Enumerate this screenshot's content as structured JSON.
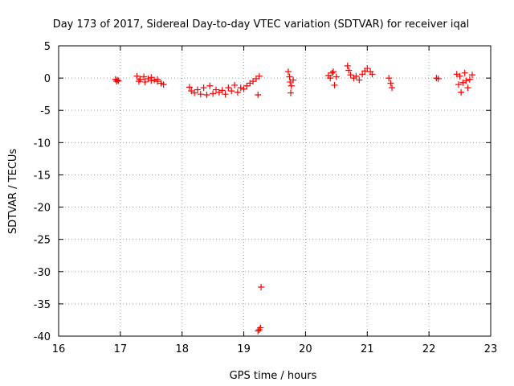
{
  "chart_data": {
    "type": "scatter",
    "title": "Day 173 of 2017, Sidereal Day-to-day VTEC variation (SDTVAR) for receiver iqal",
    "xlabel": "GPS time / hours",
    "ylabel": "SDTVAR / TECUs",
    "xlim": [
      16,
      23
    ],
    "ylim": [
      -40,
      5
    ],
    "xticks": [
      "16",
      "17",
      "18",
      "19",
      "20",
      "21",
      "22",
      "23"
    ],
    "yticks": [
      "5",
      "0",
      "-5",
      "-10",
      "-15",
      "-20",
      "-25",
      "-30",
      "-35",
      "-40"
    ],
    "grid": true,
    "marker": "+",
    "series": [
      {
        "name": "SDTVAR",
        "color": "#ff0000",
        "points": [
          [
            16.92,
            -0.2
          ],
          [
            16.94,
            -0.5
          ],
          [
            16.95,
            -0.3
          ],
          [
            16.97,
            -0.4
          ],
          [
            17.27,
            0.3
          ],
          [
            17.32,
            -0.2
          ],
          [
            17.38,
            0.2
          ],
          [
            17.45,
            -0.1
          ],
          [
            17.5,
            0.1
          ],
          [
            17.55,
            -0.3
          ],
          [
            17.6,
            -0.5
          ],
          [
            17.66,
            -0.8
          ],
          [
            17.7,
            -1.0
          ],
          [
            17.3,
            -0.5
          ],
          [
            17.4,
            -0.6
          ],
          [
            17.5,
            -0.4
          ],
          [
            17.6,
            -0.2
          ],
          [
            18.12,
            -1.4
          ],
          [
            18.15,
            -2.0
          ],
          [
            18.2,
            -2.3
          ],
          [
            18.25,
            -1.8
          ],
          [
            18.3,
            -2.5
          ],
          [
            18.35,
            -1.5
          ],
          [
            18.4,
            -2.6
          ],
          [
            18.45,
            -1.2
          ],
          [
            18.5,
            -2.4
          ],
          [
            18.55,
            -1.8
          ],
          [
            18.6,
            -2.2
          ],
          [
            18.65,
            -1.9
          ],
          [
            18.7,
            -2.5
          ],
          [
            18.75,
            -1.5
          ],
          [
            18.8,
            -2.0
          ],
          [
            18.85,
            -1.1
          ],
          [
            18.9,
            -2.2
          ],
          [
            18.95,
            -1.5
          ],
          [
            19.0,
            -1.7
          ],
          [
            19.05,
            -1.2
          ],
          [
            19.1,
            -0.8
          ],
          [
            19.15,
            -0.5
          ],
          [
            19.2,
            -0.1
          ],
          [
            19.25,
            0.3
          ],
          [
            19.23,
            -2.6
          ],
          [
            19.28,
            -32.4
          ],
          [
            19.25,
            -39.0
          ],
          [
            19.27,
            -38.7
          ],
          [
            19.23,
            -39.2
          ],
          [
            19.72,
            1.0
          ],
          [
            19.74,
            0.2
          ],
          [
            19.75,
            -0.6
          ],
          [
            19.77,
            -1.2
          ],
          [
            19.76,
            -2.3
          ],
          [
            19.8,
            -0.3
          ],
          [
            20.37,
            0.4
          ],
          [
            20.4,
            0.0
          ],
          [
            20.43,
            0.8
          ],
          [
            20.45,
            1.0
          ],
          [
            20.47,
            -1.1
          ],
          [
            20.5,
            0.2
          ],
          [
            20.68,
            1.9
          ],
          [
            20.7,
            1.2
          ],
          [
            20.73,
            0.5
          ],
          [
            20.78,
            0.0
          ],
          [
            20.82,
            0.3
          ],
          [
            20.87,
            -0.3
          ],
          [
            20.92,
            0.6
          ],
          [
            20.96,
            1.1
          ],
          [
            21.0,
            1.5
          ],
          [
            21.05,
            1.0
          ],
          [
            21.08,
            0.6
          ],
          [
            21.35,
            0.0
          ],
          [
            21.38,
            -0.8
          ],
          [
            21.4,
            -1.5
          ],
          [
            22.12,
            0.0
          ],
          [
            22.15,
            -0.1
          ],
          [
            22.45,
            0.6
          ],
          [
            22.48,
            -1.0
          ],
          [
            22.5,
            0.3
          ],
          [
            22.52,
            -2.2
          ],
          [
            22.55,
            -0.7
          ],
          [
            22.58,
            0.8
          ],
          [
            22.6,
            -0.4
          ],
          [
            22.63,
            -1.5
          ],
          [
            22.66,
            -0.2
          ],
          [
            22.7,
            0.5
          ]
        ]
      }
    ]
  }
}
